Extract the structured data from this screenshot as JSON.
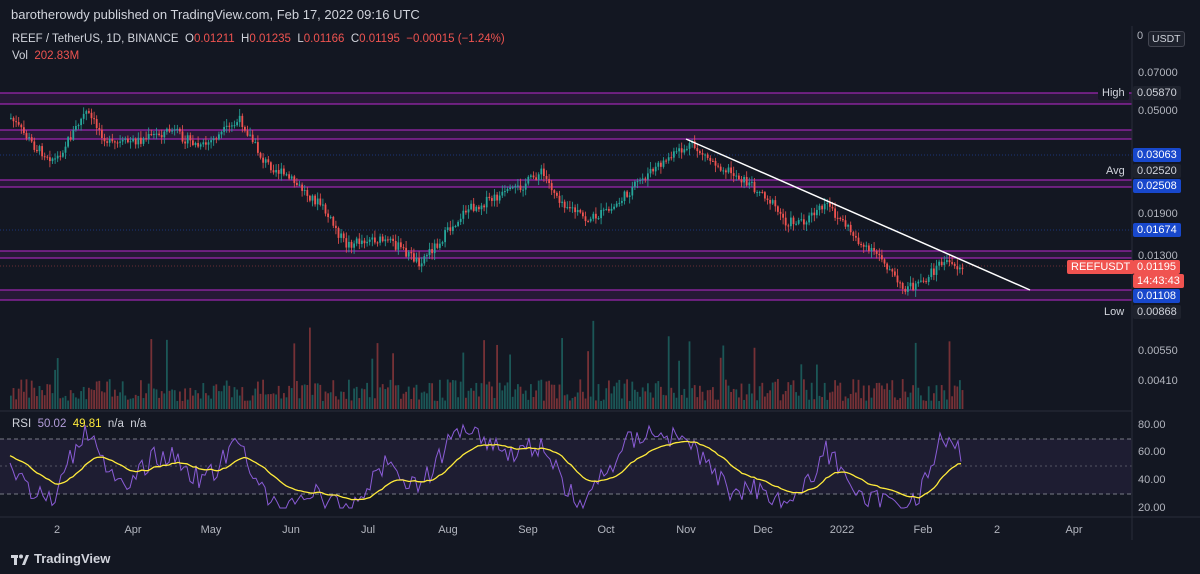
{
  "header": {
    "published": "barotherowdy published on TradingView.com, Feb 17, 2022 09:16 UTC"
  },
  "legend": {
    "symbol": "REEF / TetherUS, 1D, BINANCE",
    "o_label": "O",
    "o": "0.01211",
    "h_label": "H",
    "h": "0.01235",
    "l_label": "L",
    "l": "0.01166",
    "c_label": "C",
    "c": "0.01195",
    "change": "−0.00015 (−1.24%)",
    "vol_label": "Vol",
    "vol": "202.83M"
  },
  "currency_badge": "USDT",
  "price_axis": {
    "top_value": "0",
    "ticks": [
      "0.07000",
      "0.05000",
      "0.01900",
      "0.01300",
      "0.00550",
      "0.00410"
    ]
  },
  "price_tags": {
    "high_label": "High",
    "high": "0.05870",
    "level1": "0.03063",
    "avg_label": "Avg",
    "avg": "0.02520",
    "level2": "0.02508",
    "level3": "0.01674",
    "symbol_tag": "REEFUSDT",
    "last": "0.01195",
    "countdown": "14:43:43",
    "level4": "0.01108",
    "low_label": "Low",
    "low": "0.00868"
  },
  "rsi": {
    "label": "RSI",
    "value": "50.02",
    "ma": "49.81",
    "na1": "n/a",
    "na2": "n/a",
    "ticks": [
      "80.00",
      "60.00",
      "40.00",
      "20.00"
    ]
  },
  "time_axis": [
    "2",
    "Apr",
    "May",
    "Jun",
    "Jul",
    "Aug",
    "Sep",
    "Oct",
    "Nov",
    "Dec",
    "2022",
    "Feb",
    "2",
    "Apr"
  ],
  "footer": {
    "brand": "TradingView"
  },
  "colors": {
    "up": "#26a69a",
    "down": "#ef5350",
    "zone": "#9c27b0",
    "rsi": "#8a5cd6",
    "rsi_ma": "#ffeb3b",
    "trendline": "#ffffff"
  }
}
